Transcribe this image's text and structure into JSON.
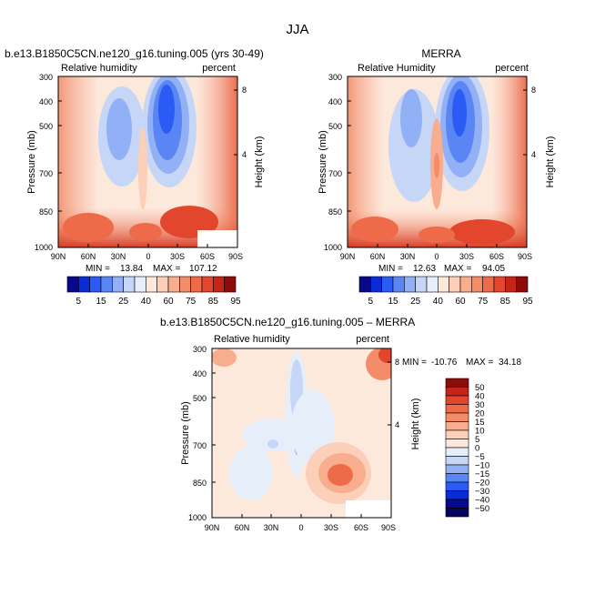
{
  "figure_title": "JJA",
  "chart_data": [
    {
      "type": "contour",
      "title": "b.e13.B1850C5CN.ne120_g16.tuning.005 (yrs 30-49)",
      "left_string": "Relative humidity",
      "right_string": "percent",
      "ylabel": "Pressure (mb)",
      "ylabel_right": "Height (km)",
      "x_ticks": [
        "90N",
        "60N",
        "30N",
        "0",
        "30S",
        "60S",
        "90S"
      ],
      "y_ticks": [
        "300",
        "400",
        "500",
        "700",
        "850",
        "1000"
      ],
      "y_ticks_right": [
        "8",
        "4"
      ],
      "ylim": [
        1000,
        300
      ],
      "xlim": [
        90,
        -90
      ],
      "min_label": "MIN =",
      "min_value": "13.84",
      "max_label": "MAX =",
      "max_value": "107.12",
      "colorbar_levels": [
        "5",
        "15",
        "25",
        "40",
        "60",
        "75",
        "85",
        "95"
      ]
    },
    {
      "type": "contour",
      "title": "MERRA",
      "left_string": "Relative Humidity",
      "right_string": "percent",
      "ylabel": "Pressure (mb)",
      "ylabel_right": "Height (km)",
      "x_ticks": [
        "90N",
        "60N",
        "30N",
        "0",
        "30S",
        "60S",
        "90S"
      ],
      "y_ticks": [
        "300",
        "400",
        "500",
        "700",
        "850",
        "1000"
      ],
      "y_ticks_right": [
        "8",
        "4"
      ],
      "ylim": [
        1000,
        300
      ],
      "xlim": [
        90,
        -90
      ],
      "min_label": "MIN =",
      "min_value": "12.63",
      "max_label": "MAX =",
      "max_value": "94.05",
      "colorbar_levels": [
        "5",
        "15",
        "25",
        "40",
        "60",
        "75",
        "85",
        "95"
      ]
    },
    {
      "type": "contour",
      "title": "b.e13.B1850C5CN.ne120_g16.tuning.005 – MERRA",
      "left_string": "Relative humidity",
      "right_string": "percent",
      "ylabel": "Pressure (mb)",
      "ylabel_right": "Height (km)",
      "x_ticks": [
        "90N",
        "60N",
        "30N",
        "0",
        "30S",
        "60S",
        "90S"
      ],
      "y_ticks": [
        "300",
        "400",
        "500",
        "700",
        "850",
        "1000"
      ],
      "y_ticks_right": [
        "8",
        "4"
      ],
      "ylim": [
        1000,
        300
      ],
      "xlim": [
        90,
        -90
      ],
      "min_label": "MIN =",
      "min_value": "-10.76",
      "max_label": "MAX =",
      "max_value": "34.18",
      "colorbar_levels": [
        "50",
        "40",
        "30",
        "20",
        "15",
        "10",
        "5",
        "0",
        "−5",
        "−10",
        "−15",
        "−20",
        "−30",
        "−40",
        "−50"
      ]
    }
  ],
  "palettes": {
    "rh": [
      "#08088a",
      "#0a2bd8",
      "#2a5cf5",
      "#5a86f5",
      "#92b0f5",
      "#c6d6f7",
      "#e6eefa",
      "#fde8dc",
      "#fbcfb8",
      "#f8ae8e",
      "#f48c6a",
      "#ef6a48",
      "#e2462c",
      "#c72418",
      "#8e0b0b"
    ],
    "diff": [
      "#8e0b0b",
      "#c72418",
      "#e2462c",
      "#ef6a48",
      "#f48c6a",
      "#f8ae8e",
      "#fbcfb8",
      "#fde8dc",
      "#e6eefa",
      "#c6d6f7",
      "#92b0f5",
      "#5a86f5",
      "#2a5cf5",
      "#0a2bd8",
      "#08088a",
      "#05055e"
    ]
  }
}
